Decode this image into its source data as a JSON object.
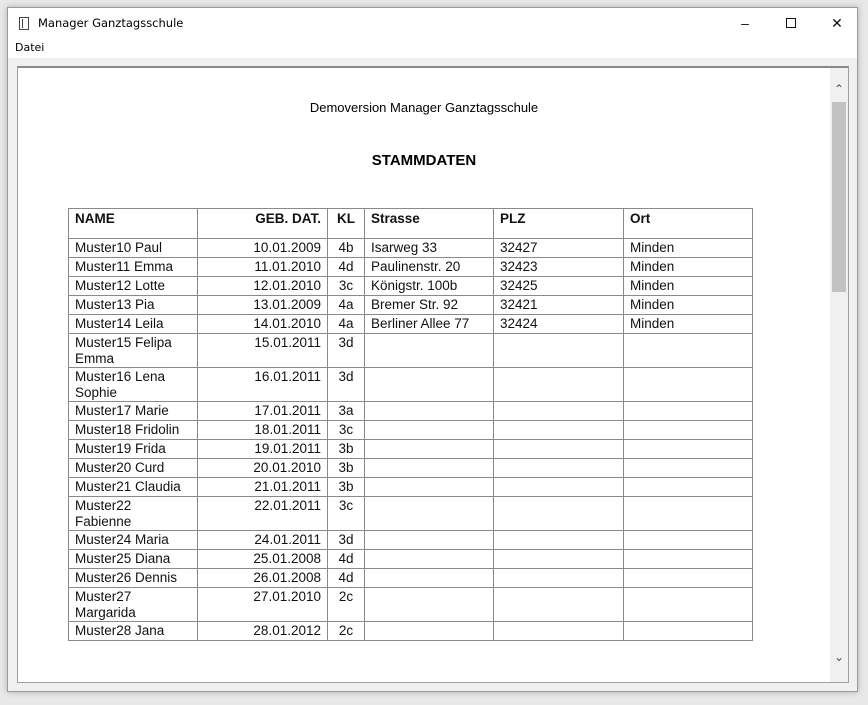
{
  "window": {
    "title": "Manager Ganztagsschule",
    "icon": "notebook-icon",
    "controls": [
      "minimize-icon",
      "maximize-icon",
      "close-icon"
    ]
  },
  "menu": {
    "items": [
      "Datei"
    ]
  },
  "document": {
    "heading": "Demoversion Manager Ganztagsschule",
    "title": "STAMMDATEN",
    "columns": [
      "NAME",
      "GEB. DAT.",
      "KL",
      "Strasse",
      "PLZ",
      "Ort"
    ],
    "rows": [
      [
        "Muster10 Paul",
        "10.01.2009",
        "4b",
        "Isarweg 33",
        "32427",
        "Minden"
      ],
      [
        "Muster11 Emma",
        "11.01.2010",
        "4d",
        "Paulinenstr. 20",
        "32423",
        "Minden"
      ],
      [
        "Muster12 Lotte",
        "12.01.2010",
        "3c",
        "Königstr. 100b",
        "32425",
        "Minden"
      ],
      [
        "Muster13 Pia",
        "13.01.2009",
        "4a",
        "Bremer Str. 92",
        "32421",
        "Minden"
      ],
      [
        "Muster14 Leila",
        "14.01.2010",
        "4a",
        "Berliner Allee 77",
        "32424",
        "Minden"
      ],
      [
        "Muster15 Felipa Emma",
        "15.01.2011",
        "3d",
        "",
        "",
        ""
      ],
      [
        "Muster16 Lena Sophie",
        "16.01.2011",
        "3d",
        "",
        "",
        ""
      ],
      [
        "Muster17 Marie",
        "17.01.2011",
        "3a",
        "",
        "",
        ""
      ],
      [
        "Muster18 Fridolin",
        "18.01.2011",
        "3c",
        "",
        "",
        ""
      ],
      [
        "Muster19 Frida",
        "19.01.2011",
        "3b",
        "",
        "",
        ""
      ],
      [
        "Muster20 Curd",
        "20.01.2010",
        "3b",
        "",
        "",
        ""
      ],
      [
        "Muster21 Claudia",
        "21.01.2011",
        "3b",
        "",
        "",
        ""
      ],
      [
        "Muster22 Fabienne",
        "22.01.2011",
        "3c",
        "",
        "",
        ""
      ],
      [
        "Muster24 Maria",
        "24.01.2011",
        "3d",
        "",
        "",
        ""
      ],
      [
        "Muster25 Diana",
        "25.01.2008",
        "4d",
        "",
        "",
        ""
      ],
      [
        "Muster26 Dennis",
        "26.01.2008",
        "4d",
        "",
        "",
        ""
      ],
      [
        "Muster27 Margarida",
        "27.01.2010",
        "2c",
        "",
        "",
        ""
      ],
      [
        "Muster28 Jana",
        "28.01.2012",
        "2c",
        "",
        "",
        ""
      ]
    ]
  }
}
